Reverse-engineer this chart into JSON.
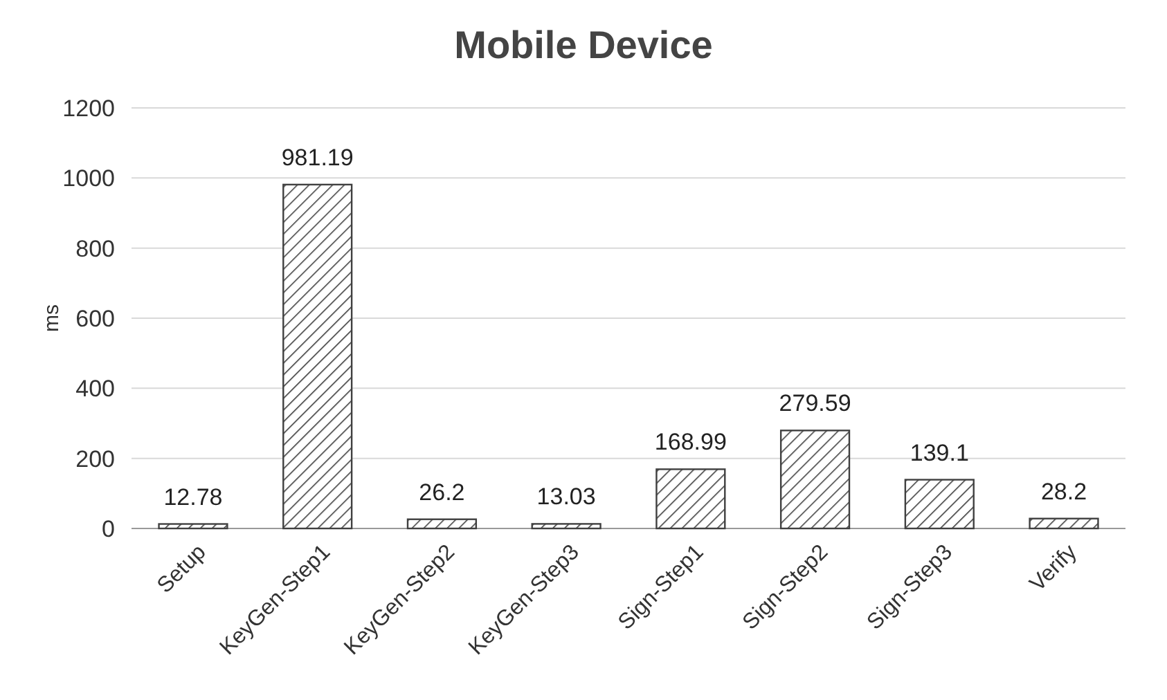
{
  "chart_data": {
    "type": "bar",
    "title": "Mobile Device",
    "ylabel": "ms",
    "categories": [
      "Setup",
      "KeyGen-Step1",
      "KeyGen-Step2",
      "KeyGen-Step3",
      "Sign-Step1",
      "Sign-Step2",
      "Sign-Step3",
      "Verify"
    ],
    "values": [
      12.78,
      981.19,
      26.2,
      13.03,
      168.99,
      279.59,
      139.1,
      28.2
    ],
    "color": "#404040",
    "ylim": [
      0,
      1200
    ],
    "yticks": [
      0,
      200,
      400,
      600,
      800,
      1000,
      1200
    ],
    "grid": "y",
    "data_labels": true
  }
}
